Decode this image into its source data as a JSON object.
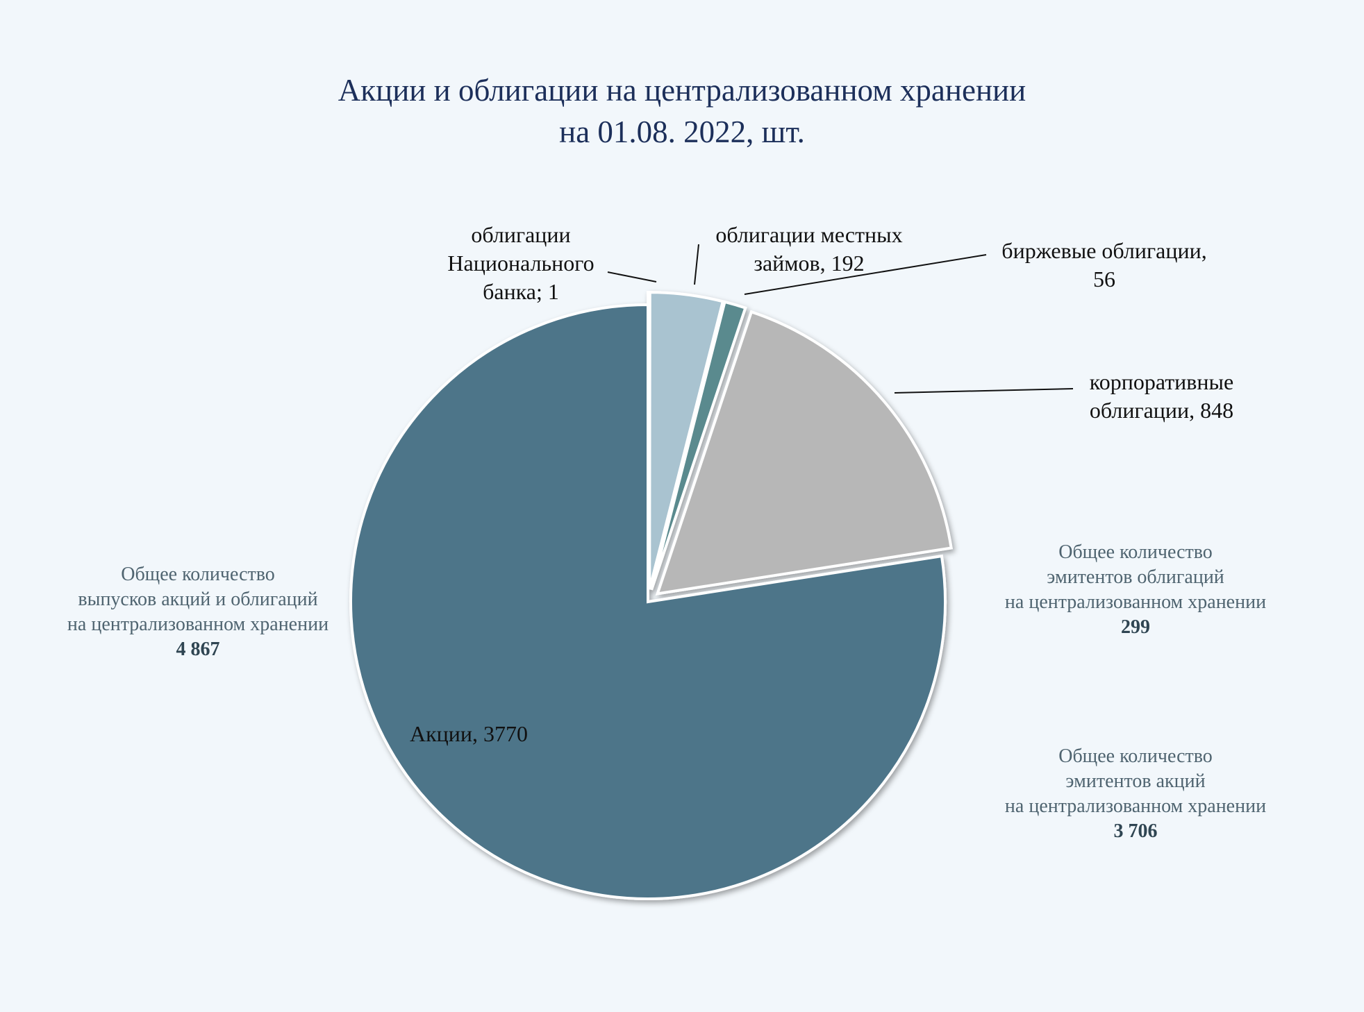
{
  "chart_data": {
    "type": "pie",
    "title": [
      "Акции и облигации на централизованном хранении",
      "на 01.08. 2022, шт."
    ],
    "slices": [
      {
        "name": "Акции",
        "value": 3770,
        "label": "Акции, 3770",
        "color": "#4d7489"
      },
      {
        "name": "облигации Национального банка",
        "value": 1,
        "label": "облигации Национального банка; 1",
        "color": "#5a7f8f"
      },
      {
        "name": "облигации местных займов",
        "value": 192,
        "label": "облигации местных займов, 192",
        "color": "#a9c3d0"
      },
      {
        "name": "биржевые облигации",
        "value": 56,
        "label": "биржевые облигации, 56",
        "color": "#5a8a8e"
      },
      {
        "name": "корпоративные облигации",
        "value": 848,
        "label": "корпоративные облигации, 848",
        "color": "#b7b7b7"
      }
    ]
  },
  "labels": {
    "akcii": "Акции, 3770",
    "nb_l1": "облигации",
    "nb_l2": "Национального",
    "nb_l3": "банка; 1",
    "mest_l1": "облигации местных",
    "mest_l2": "займов, 192",
    "birzh_l1": "биржевые облигации,",
    "birzh_l2": "56",
    "korp_l1": "корпоративные",
    "korp_l2": "облигации, 848"
  },
  "notes": {
    "total_issues": {
      "lines": [
        "Общее количество",
        "выпусков акций и облигаций",
        "на централизованном хранении"
      ],
      "value": "4 867"
    },
    "bond_issuers": {
      "lines": [
        "Общее количество",
        "эмитентов облигаций",
        "на централизованном хранении"
      ],
      "value": "299"
    },
    "share_issuers": {
      "lines": [
        "Общее количество",
        "эмитентов акций",
        "на централизованном хранении"
      ],
      "value": "3 706"
    }
  }
}
